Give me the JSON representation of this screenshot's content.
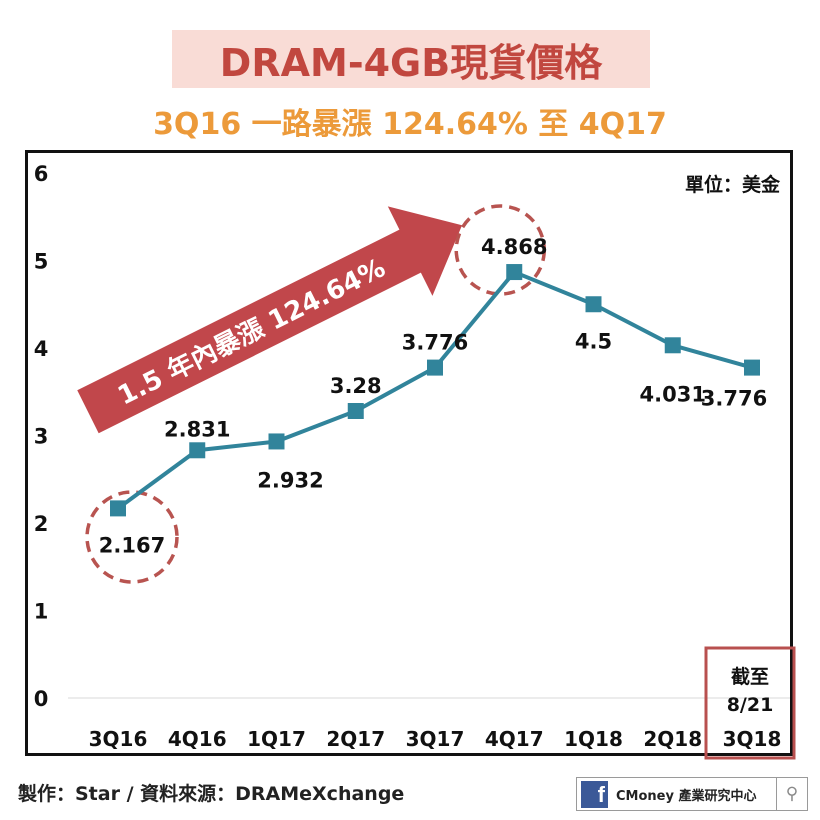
{
  "header": {
    "title": "DRAM-4GB現貨價格",
    "subtitle": "3Q16 一路暴漲 124.64% 至 4Q17"
  },
  "chart_data": {
    "type": "line",
    "categories": [
      "3Q16",
      "4Q16",
      "1Q17",
      "2Q17",
      "3Q17",
      "4Q17",
      "1Q18",
      "2Q18",
      "3Q18"
    ],
    "values": [
      2.167,
      2.831,
      2.932,
      3.28,
      3.776,
      4.868,
      4.5,
      4.031,
      3.776
    ],
    "data_labels": [
      "2.167",
      "2.831",
      "2.932",
      "3.28",
      "3.776",
      "4.868",
      "4.5",
      "4.031",
      "3.776"
    ],
    "y_ticks": [
      "0",
      "1",
      "2",
      "3",
      "4",
      "5",
      "6"
    ],
    "ylim": [
      0,
      6
    ],
    "unit_label": "單位：美金",
    "arrow_text": "1.5 年內暴漲 124.64%",
    "note": "截至\n8/21",
    "grid": false,
    "line_color": "#31849b",
    "arrow_color": "#c1474b",
    "highlight_color": "#b85450"
  },
  "footer": {
    "credit": "製作：Star / 資料來源：DRAMeXchange",
    "brand": "CMoney 產業研究中心"
  },
  "colors": {
    "title": "#c1473f",
    "title_bg": "#f9dcd6",
    "subtitle": "#ec9a3a",
    "facebook": "#3b5998"
  },
  "icons": [
    "facebook-icon",
    "search-icon"
  ]
}
